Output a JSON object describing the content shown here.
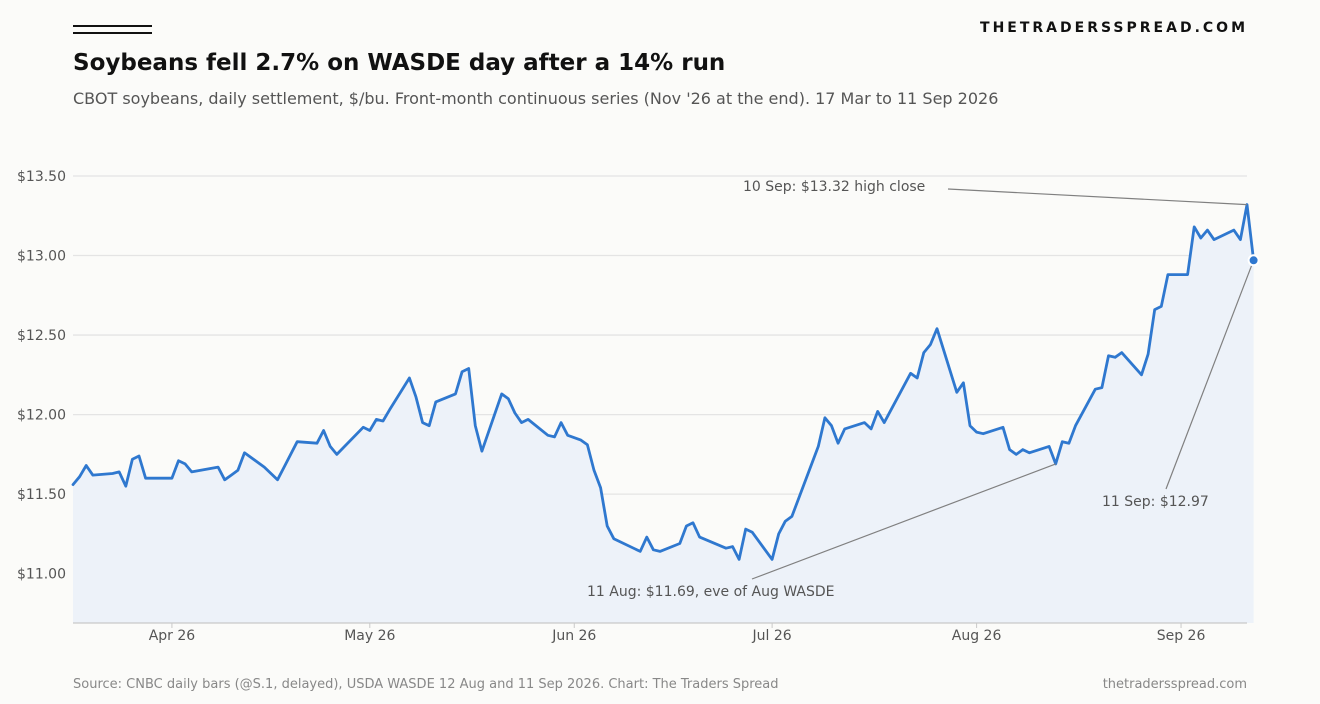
{
  "header": {
    "brand": "THETRADERSSPREAD.COM",
    "title": "Soybeans fell 2.7% on WASDE day after a 14% run",
    "subtitle": "CBOT soybeans, daily settlement, $/bu. Front-month continuous series (Nov '26 at the end). 17 Mar to 11 Sep 2026"
  },
  "footer": {
    "source": "Source: CNBC daily bars (@S.1, delayed), USDA WASDE 12 Aug and 11 Sep 2026. Chart: The Traders Spread",
    "site": "thetradersspread.com"
  },
  "colors": {
    "line": "#2f78cf",
    "area": "#edf2f9",
    "grid": "#e4e4e4",
    "leader": "#808080"
  },
  "chart_data": {
    "type": "area",
    "ylim": [
      10.69,
      13.5
    ],
    "xlim": [
      "2026-03-17",
      "2026-09-11"
    ],
    "grid": true,
    "y_ticks": [
      {
        "value": 11.0,
        "label": "$11.00"
      },
      {
        "value": 11.5,
        "label": "$11.50"
      },
      {
        "value": 12.0,
        "label": "$12.00"
      },
      {
        "value": 12.5,
        "label": "$12.50"
      },
      {
        "value": 13.0,
        "label": "$13.00"
      },
      {
        "value": 13.5,
        "label": "$13.50"
      }
    ],
    "x_ticks": [
      {
        "date": "2026-04-01",
        "label": "Apr 26"
      },
      {
        "date": "2026-05-01",
        "label": "May 26"
      },
      {
        "date": "2026-06-01",
        "label": "Jun 26"
      },
      {
        "date": "2026-07-01",
        "label": "Jul 26"
      },
      {
        "date": "2026-08-01",
        "label": "Aug 26"
      },
      {
        "date": "2026-09-01",
        "label": "Sep 26"
      }
    ],
    "series": [
      {
        "points": [
          [
            "2026-03-17",
            11.56
          ],
          [
            "2026-03-18",
            11.61
          ],
          [
            "2026-03-19",
            11.68
          ],
          [
            "2026-03-20",
            11.62
          ],
          [
            "2026-03-23",
            11.63
          ],
          [
            "2026-03-24",
            11.64
          ],
          [
            "2026-03-25",
            11.55
          ],
          [
            "2026-03-26",
            11.72
          ],
          [
            "2026-03-27",
            11.74
          ],
          [
            "2026-03-28",
            11.6
          ],
          [
            "2026-03-31",
            11.6
          ],
          [
            "2026-04-01",
            11.6
          ],
          [
            "2026-04-02",
            11.71
          ],
          [
            "2026-04-03",
            11.69
          ],
          [
            "2026-04-04",
            11.64
          ],
          [
            "2026-04-08",
            11.67
          ],
          [
            "2026-04-09",
            11.59
          ],
          [
            "2026-04-10",
            11.62
          ],
          [
            "2026-04-11",
            11.65
          ],
          [
            "2026-04-12",
            11.76
          ],
          [
            "2026-04-15",
            11.67
          ],
          [
            "2026-04-17",
            11.59
          ],
          [
            "2026-04-18",
            11.67
          ],
          [
            "2026-04-20",
            11.83
          ],
          [
            "2026-04-23",
            11.82
          ],
          [
            "2026-04-24",
            11.9
          ],
          [
            "2026-04-25",
            11.8
          ],
          [
            "2026-04-26",
            11.75
          ],
          [
            "2026-04-30",
            11.92
          ],
          [
            "2026-05-01",
            11.9
          ],
          [
            "2026-05-02",
            11.97
          ],
          [
            "2026-05-03",
            11.96
          ],
          [
            "2026-05-04",
            12.03
          ],
          [
            "2026-05-07",
            12.23
          ],
          [
            "2026-05-08",
            12.11
          ],
          [
            "2026-05-09",
            11.95
          ],
          [
            "2026-05-10",
            11.93
          ],
          [
            "2026-05-11",
            12.08
          ],
          [
            "2026-05-14",
            12.13
          ],
          [
            "2026-05-15",
            12.27
          ],
          [
            "2026-05-16",
            12.29
          ],
          [
            "2026-05-17",
            11.93
          ],
          [
            "2026-05-18",
            11.77
          ],
          [
            "2026-05-21",
            12.13
          ],
          [
            "2026-05-22",
            12.1
          ],
          [
            "2026-05-23",
            12.01
          ],
          [
            "2026-05-24",
            11.95
          ],
          [
            "2026-05-25",
            11.97
          ],
          [
            "2026-05-28",
            11.87
          ],
          [
            "2026-05-29",
            11.86
          ],
          [
            "2026-05-30",
            11.95
          ],
          [
            "2026-05-31",
            11.87
          ],
          [
            "2026-06-02",
            11.84
          ],
          [
            "2026-06-03",
            11.81
          ],
          [
            "2026-06-04",
            11.65
          ],
          [
            "2026-06-05",
            11.54
          ],
          [
            "2026-06-06",
            11.3
          ],
          [
            "2026-06-07",
            11.22
          ],
          [
            "2026-06-11",
            11.14
          ],
          [
            "2026-06-12",
            11.23
          ],
          [
            "2026-06-13",
            11.15
          ],
          [
            "2026-06-14",
            11.14
          ],
          [
            "2026-06-17",
            11.19
          ],
          [
            "2026-06-18",
            11.3
          ],
          [
            "2026-06-19",
            11.32
          ],
          [
            "2026-06-20",
            11.23
          ],
          [
            "2026-06-24",
            11.16
          ],
          [
            "2026-06-25",
            11.17
          ],
          [
            "2026-06-26",
            11.09
          ],
          [
            "2026-06-27",
            11.28
          ],
          [
            "2026-06-28",
            11.26
          ],
          [
            "2026-07-01",
            11.09
          ],
          [
            "2026-07-02",
            11.25
          ],
          [
            "2026-07-03",
            11.33
          ],
          [
            "2026-07-04",
            11.36
          ],
          [
            "2026-07-08",
            11.8
          ],
          [
            "2026-07-09",
            11.98
          ],
          [
            "2026-07-10",
            11.93
          ],
          [
            "2026-07-11",
            11.82
          ],
          [
            "2026-07-12",
            11.91
          ],
          [
            "2026-07-15",
            11.95
          ],
          [
            "2026-07-16",
            11.91
          ],
          [
            "2026-07-17",
            12.02
          ],
          [
            "2026-07-18",
            11.95
          ],
          [
            "2026-07-22",
            12.26
          ],
          [
            "2026-07-23",
            12.23
          ],
          [
            "2026-07-24",
            12.39
          ],
          [
            "2026-07-25",
            12.44
          ],
          [
            "2026-07-26",
            12.54
          ],
          [
            "2026-07-29",
            12.14
          ],
          [
            "2026-07-30",
            12.2
          ],
          [
            "2026-07-31",
            11.93
          ],
          [
            "2026-08-01",
            11.89
          ],
          [
            "2026-08-02",
            11.88
          ],
          [
            "2026-08-05",
            11.92
          ],
          [
            "2026-08-06",
            11.78
          ],
          [
            "2026-08-07",
            11.75
          ],
          [
            "2026-08-08",
            11.78
          ],
          [
            "2026-08-09",
            11.76
          ],
          [
            "2026-08-12",
            11.8
          ],
          [
            "2026-08-13",
            11.69
          ],
          [
            "2026-08-14",
            11.83
          ],
          [
            "2026-08-15",
            11.82
          ],
          [
            "2026-08-16",
            11.93
          ],
          [
            "2026-08-19",
            12.16
          ],
          [
            "2026-08-20",
            12.17
          ],
          [
            "2026-08-21",
            12.37
          ],
          [
            "2026-08-22",
            12.36
          ],
          [
            "2026-08-23",
            12.39
          ],
          [
            "2026-08-26",
            12.25
          ],
          [
            "2026-08-27",
            12.38
          ],
          [
            "2026-08-28",
            12.66
          ],
          [
            "2026-08-29",
            12.68
          ],
          [
            "2026-08-30",
            12.88
          ],
          [
            "2026-09-02",
            12.88
          ],
          [
            "2026-09-03",
            13.18
          ],
          [
            "2026-09-04",
            13.11
          ],
          [
            "2026-09-05",
            13.16
          ],
          [
            "2026-09-06",
            13.1
          ],
          [
            "2026-09-09",
            13.16
          ],
          [
            "2026-09-10",
            13.1
          ],
          [
            "2026-09-11",
            13.32
          ],
          [
            "2026-09-12",
            12.97
          ]
        ]
      }
    ],
    "annotations": [
      {
        "text": "10 Sep: $13.32 high close",
        "date": "2026-09-11",
        "value": 13.32
      },
      {
        "text": "11 Aug: $11.69, eve of Aug WASDE",
        "date": "2026-08-13",
        "value": 11.69
      },
      {
        "text": "11 Sep: $12.97",
        "date": "2026-09-12",
        "value": 12.97
      }
    ]
  }
}
